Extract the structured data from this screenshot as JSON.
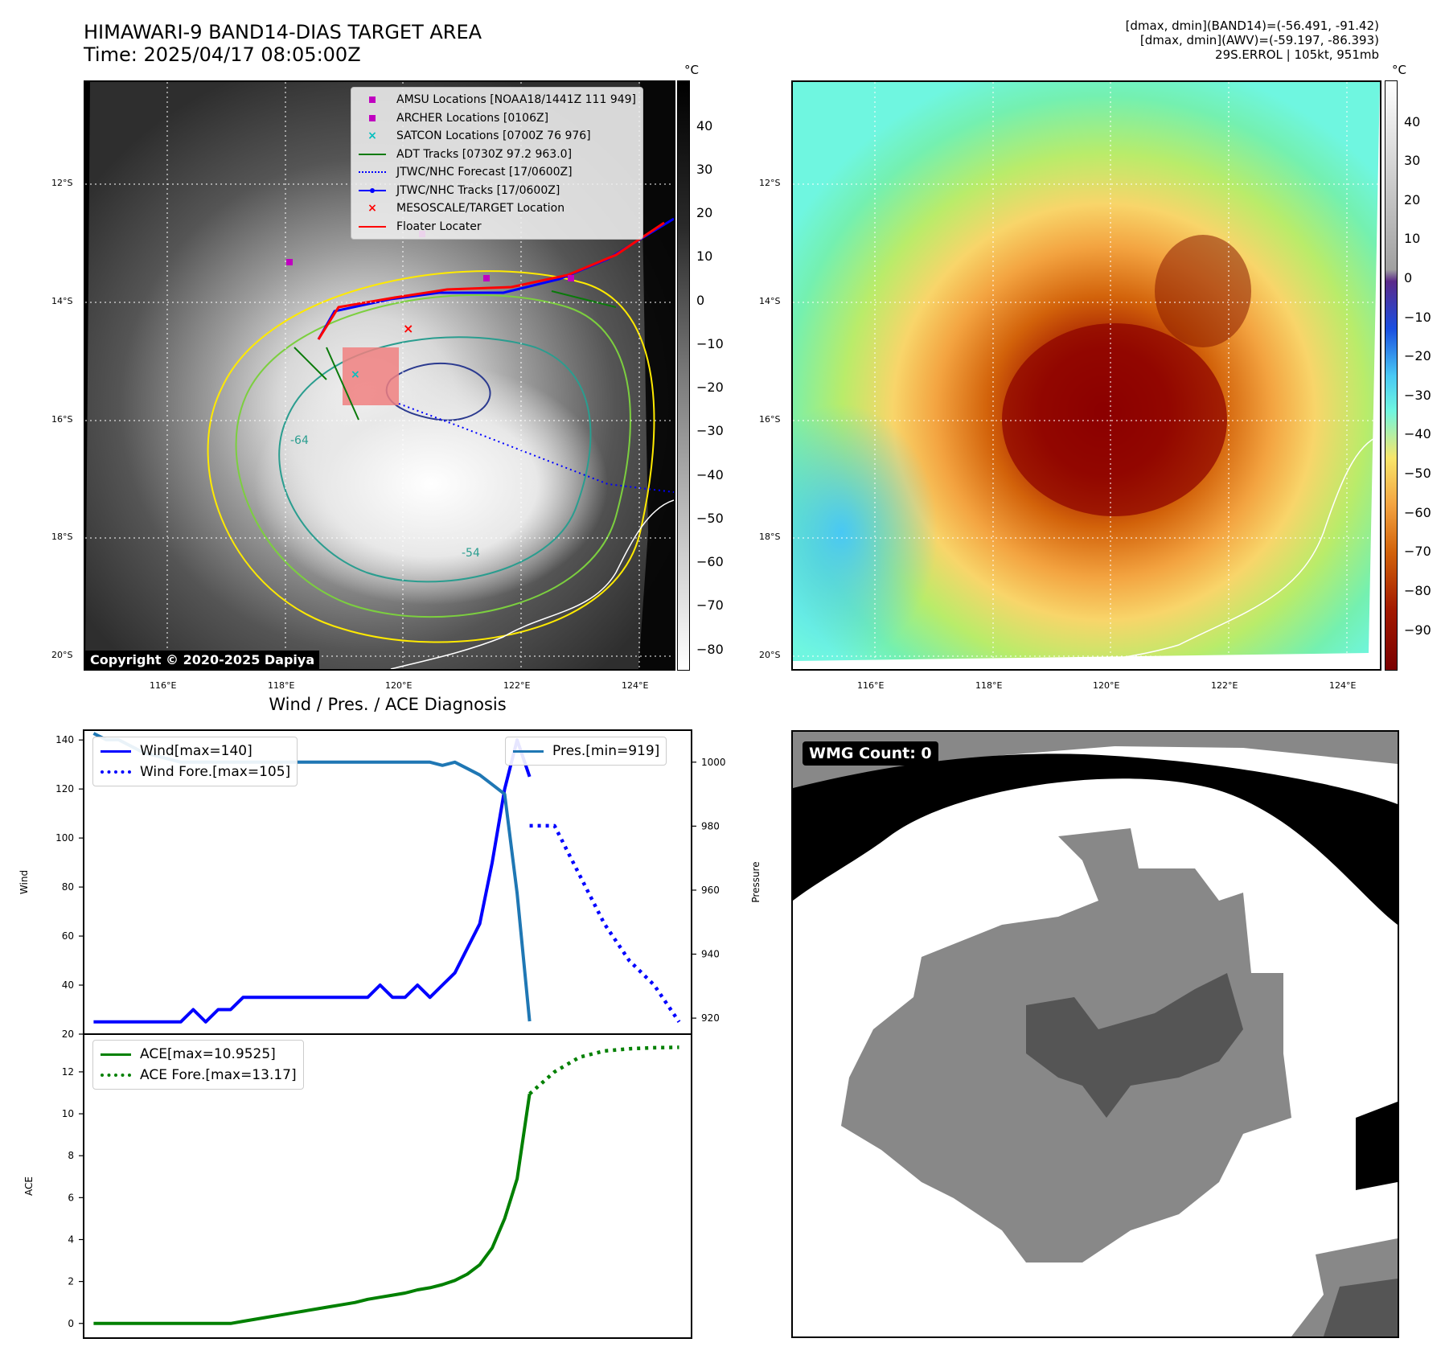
{
  "header": {
    "title_line1": "HIMAWARI-9 BAND14-DIAS TARGET AREA",
    "title_line2": "Time: 2025/04/17 08:05:00Z",
    "meta_line1": "[dmax, dmin](BAND14)=(-56.491, -91.42)",
    "meta_line2": "[dmax, dmin](AWV)=(-59.197, -86.393)",
    "meta_line3": "29S.ERROL | 105kt, 951mb"
  },
  "map": {
    "lat_labels": [
      "12°S",
      "14°S",
      "16°S",
      "18°S",
      "20°S"
    ],
    "lon_labels": [
      "116°E",
      "118°E",
      "120°E",
      "122°E",
      "124°E"
    ],
    "copyright": "Copyright © 2020-2025 Dapiya",
    "contour_labels": [
      "-64",
      "-54"
    ],
    "legend": [
      {
        "label": "AMSU Locations [NOAA18/1441Z 111 949]",
        "symbol": "magenta-square"
      },
      {
        "label": "ARCHER Locations [0106Z]",
        "symbol": "magenta-square"
      },
      {
        "label": "SATCON Locations [0700Z 76 976]",
        "symbol": "cyan-x"
      },
      {
        "label": "ADT Tracks [0730Z 97.2 963.0]",
        "symbol": "green-line"
      },
      {
        "label": "JTWC/NHC Forecast [17/0600Z]",
        "symbol": "blue-dotted"
      },
      {
        "label": "JTWC/NHC Tracks [17/0600Z]",
        "symbol": "blue-line-dot"
      },
      {
        "label": "MESOSCALE/TARGET Location",
        "symbol": "red-x"
      },
      {
        "label": "Floater Locater",
        "symbol": "red-line"
      }
    ]
  },
  "colorbars": {
    "unit": "°C",
    "gray_ticks": [
      "40",
      "30",
      "20",
      "10",
      "0",
      "−10",
      "−20",
      "−30",
      "−40",
      "−50",
      "−60",
      "−70",
      "−80"
    ],
    "color_ticks": [
      "40",
      "30",
      "20",
      "10",
      "0",
      "−10",
      "−20",
      "−30",
      "−40",
      "−50",
      "−60",
      "−70",
      "−80",
      "−90"
    ]
  },
  "colors": {
    "wind": "#0000ff",
    "pressure": "#1f77b4",
    "ace": "#008000",
    "gray_panel_light": "#888888",
    "gray_panel_dark": "#555555"
  },
  "wmg": {
    "label": "WMG Count: 0"
  },
  "chart_data": [
    {
      "type": "line",
      "title": "Wind / Pres. / ACE Diagnosis",
      "ylabel": "Wind",
      "ylabel_right": "Pressure",
      "ylim": [
        20,
        144
      ],
      "ylim_right": [
        915,
        1010
      ],
      "yticks": [
        "20",
        "40",
        "60",
        "80",
        "100",
        "120",
        "140"
      ],
      "yticks_right": [
        "920",
        "940",
        "960",
        "980",
        "1000"
      ],
      "legend_left": [
        "Wind[max=140]",
        "Wind Fore.[max=105]"
      ],
      "legend_right": [
        "Pres.[min=919]"
      ],
      "series": [
        {
          "name": "Wind[max=140]",
          "style": "solid",
          "color": "#0000ff",
          "x": [
            0,
            1,
            2,
            3,
            4,
            5,
            6,
            7,
            8,
            9,
            10,
            11,
            12,
            13,
            14,
            15,
            16,
            17,
            18,
            19,
            20,
            21,
            22,
            23,
            24,
            25,
            26,
            27,
            28,
            29,
            30,
            31,
            32,
            33,
            34,
            35
          ],
          "values": [
            25,
            25,
            25,
            25,
            25,
            25,
            25,
            25,
            30,
            25,
            30,
            30,
            35,
            35,
            35,
            35,
            35,
            35,
            35,
            35,
            35,
            35,
            35,
            40,
            35,
            35,
            40,
            35,
            40,
            45,
            55,
            65,
            90,
            120,
            140,
            125
          ]
        },
        {
          "name": "Wind Fore.[max=105]",
          "style": "dotted",
          "color": "#0000ff",
          "x": [
            35,
            37,
            39,
            41,
            43,
            45,
            47
          ],
          "values": [
            105,
            105,
            85,
            65,
            50,
            40,
            25
          ]
        },
        {
          "name": "Pres.[min=919]",
          "style": "solid",
          "color": "#1f77b4",
          "axis": "right",
          "x": [
            0,
            1,
            2,
            3,
            4,
            5,
            6,
            7,
            8,
            9,
            10,
            11,
            12,
            13,
            14,
            15,
            16,
            17,
            18,
            19,
            20,
            21,
            22,
            23,
            24,
            25,
            26,
            27,
            28,
            29,
            30,
            31,
            32,
            33,
            34,
            35
          ],
          "values": [
            1009,
            1007,
            1007,
            1005,
            1003,
            1002,
            1001,
            1000,
            1000,
            1000,
            1000,
            1000,
            1000,
            1000,
            1000,
            1000,
            1000,
            1000,
            1000,
            1000,
            1000,
            1000,
            1000,
            1000,
            1000,
            1000,
            1000,
            1000,
            999,
            1000,
            998,
            996,
            993,
            990,
            959,
            919
          ]
        }
      ]
    },
    {
      "type": "line",
      "ylabel": "ACE",
      "ylim": [
        -0.7,
        13.8
      ],
      "yticks": [
        "0",
        "2",
        "4",
        "6",
        "8",
        "10",
        "12"
      ],
      "legend": [
        "ACE[max=10.9525]",
        "ACE Fore.[max=13.17]"
      ],
      "series": [
        {
          "name": "ACE[max=10.9525]",
          "style": "solid",
          "color": "#008000",
          "x": [
            0,
            1,
            2,
            3,
            4,
            5,
            6,
            7,
            8,
            9,
            10,
            11,
            12,
            13,
            14,
            15,
            16,
            17,
            18,
            19,
            20,
            21,
            22,
            23,
            24,
            25,
            26,
            27,
            28,
            29,
            30,
            31,
            32,
            33,
            34,
            35
          ],
          "values": [
            0,
            0,
            0,
            0,
            0,
            0,
            0,
            0,
            0,
            0,
            0,
            0,
            0.1,
            0.2,
            0.3,
            0.4,
            0.5,
            0.6,
            0.7,
            0.8,
            0.9,
            1.0,
            1.15,
            1.25,
            1.35,
            1.45,
            1.6,
            1.7,
            1.85,
            2.05,
            2.35,
            2.8,
            3.6,
            5.0,
            6.9,
            10.95
          ]
        },
        {
          "name": "ACE Fore.[max=13.17]",
          "style": "dotted",
          "color": "#008000",
          "x": [
            35,
            37,
            39,
            41,
            43,
            45,
            47
          ],
          "values": [
            10.95,
            12.0,
            12.7,
            13.0,
            13.1,
            13.15,
            13.17
          ]
        }
      ]
    }
  ]
}
